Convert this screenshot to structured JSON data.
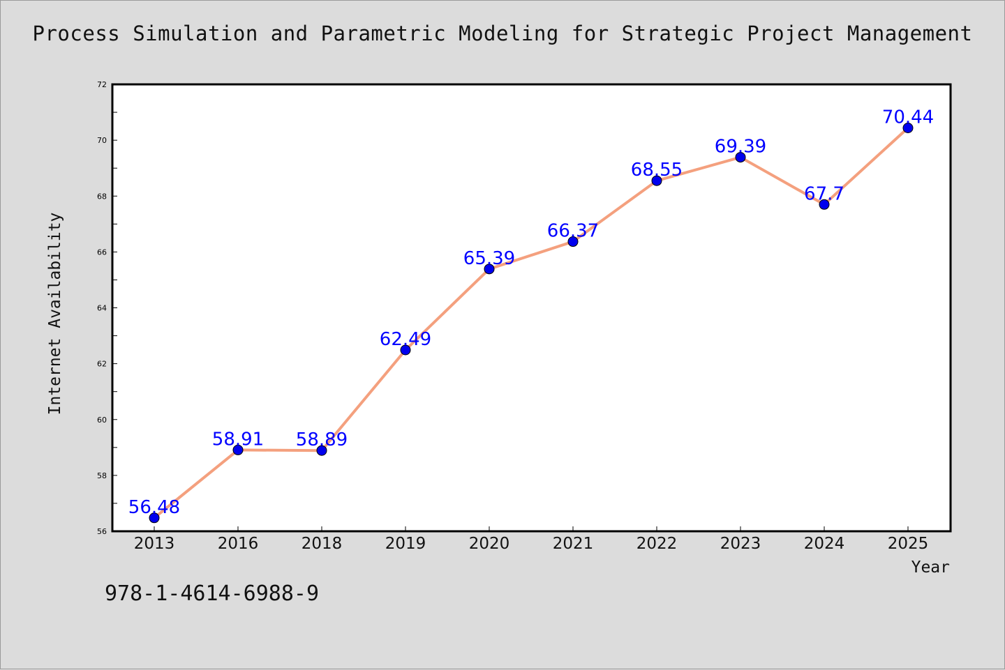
{
  "chart_data": {
    "type": "line",
    "title": "Process Simulation and Parametric Modeling for Strategic Project Management",
    "xlabel": "Year",
    "ylabel": "Internet Availability",
    "categories": [
      "2013",
      "2016",
      "2018",
      "2019",
      "2020",
      "2021",
      "2022",
      "2023",
      "2024",
      "2025"
    ],
    "values": [
      56.48,
      58.91,
      58.89,
      62.49,
      65.39,
      66.37,
      68.55,
      69.39,
      67.7,
      70.44
    ],
    "data_labels": [
      "56.48",
      "58.91",
      "58.89",
      "62.49",
      "65.39",
      "66.37",
      "68.55",
      "69.39",
      "67.7",
      "70.44"
    ],
    "ylim": [
      56,
      72
    ],
    "yticks": [
      "56",
      "58",
      "60",
      "62",
      "64",
      "66",
      "68",
      "70",
      "72"
    ],
    "grid": false,
    "colors": {
      "line": "#f4a07e",
      "marker": "#0000ee",
      "label": "#0000ff",
      "background": "#dcdcdc",
      "plot_background": "#ffffff"
    }
  },
  "footer": {
    "isbn": "978-1-4614-6988-9"
  }
}
